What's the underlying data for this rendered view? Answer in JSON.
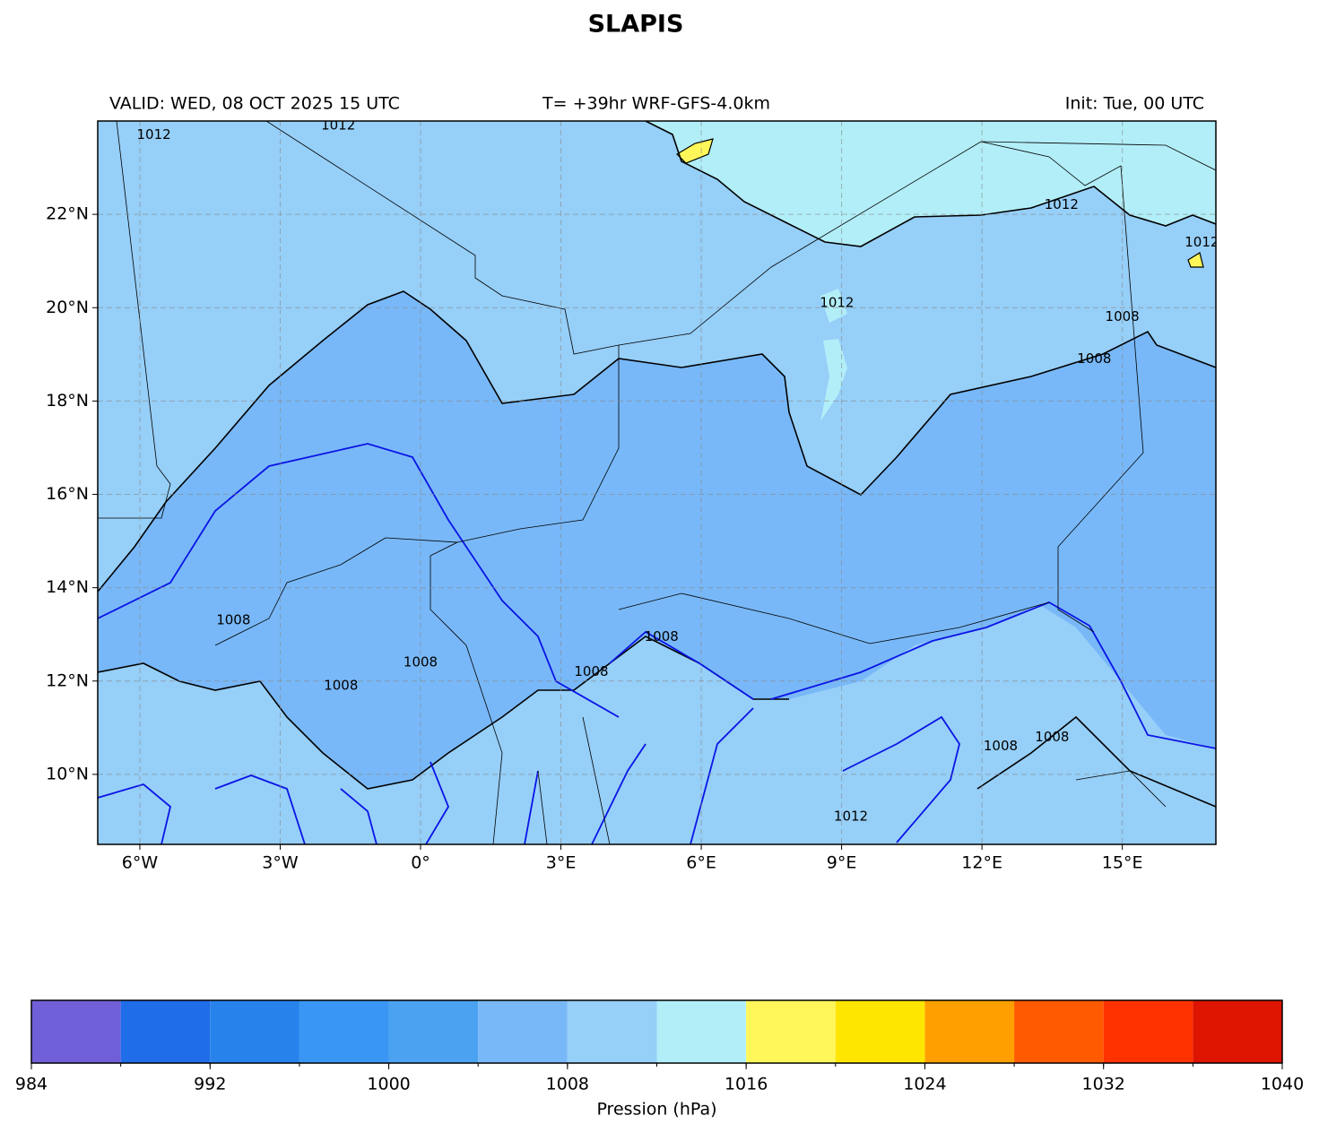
{
  "title": "SLAPIS",
  "valid": "VALID: WED, 08 OCT 2025 15 UTC",
  "run": "T= +39hr WRF-GFS-4.0km",
  "init": "Init: Tue, 00 UTC",
  "map": {
    "lon_range": [
      -6.9,
      17
    ],
    "lat_range": [
      8.5,
      24
    ],
    "lon_ticks": [
      {
        "value": -6,
        "label": "6°W"
      },
      {
        "value": -3,
        "label": "3°W"
      },
      {
        "value": 0,
        "label": "0°"
      },
      {
        "value": 3,
        "label": "3°E"
      },
      {
        "value": 6,
        "label": "6°E"
      },
      {
        "value": 9,
        "label": "9°E"
      },
      {
        "value": 12,
        "label": "12°E"
      },
      {
        "value": 15,
        "label": "15°E"
      }
    ],
    "lat_ticks": [
      {
        "value": 10,
        "label": "10°N"
      },
      {
        "value": 12,
        "label": "12°N"
      },
      {
        "value": 14,
        "label": "14°N"
      },
      {
        "value": 16,
        "label": "16°N"
      },
      {
        "value": 18,
        "label": "18°N"
      },
      {
        "value": 20,
        "label": "20°N"
      },
      {
        "value": 22,
        "label": "22°N"
      }
    ],
    "grid": true,
    "contour_labels": [
      {
        "text": "1012",
        "lon": -5.7,
        "lat": 23.7
      },
      {
        "text": "1012",
        "lon": -1.76,
        "lat": 23.9
      },
      {
        "text": "1012",
        "lon": 13.7,
        "lat": 22.2
      },
      {
        "text": "1012",
        "lon": 16.7,
        "lat": 21.4
      },
      {
        "text": "1012",
        "lon": 8.9,
        "lat": 20.1
      },
      {
        "text": "1012",
        "lon": 9.2,
        "lat": 9.1
      },
      {
        "text": "1008",
        "lon": 14.4,
        "lat": 18.9
      },
      {
        "text": "1008",
        "lon": 15.0,
        "lat": 19.8
      },
      {
        "text": "1008",
        "lon": -4.0,
        "lat": 13.3
      },
      {
        "text": "1008",
        "lon": 0.0,
        "lat": 12.4
      },
      {
        "text": "1008",
        "lon": -1.7,
        "lat": 11.9
      },
      {
        "text": "1008",
        "lon": 5.15,
        "lat": 12.95
      },
      {
        "text": "1008",
        "lon": 3.65,
        "lat": 12.2
      },
      {
        "text": "1008",
        "lon": 12.4,
        "lat": 10.6
      },
      {
        "text": "1008",
        "lon": 13.5,
        "lat": 10.8
      }
    ]
  },
  "colorbar": {
    "label": "Pression (hPa)",
    "levels": [
      984,
      988,
      992,
      996,
      1000,
      1004,
      1008,
      1012,
      1016,
      1020,
      1024,
      1028,
      1032,
      1036,
      1040
    ],
    "colors": [
      "#7060d8",
      "#1f6de8",
      "#2882ec",
      "#3a96f4",
      "#4aa2f0",
      "#78b8f8",
      "#96cff8",
      "#b2eef8",
      "#fff75a",
      "#ffe600",
      "#ffa000",
      "#ff5a00",
      "#ff3200",
      "#dc1400"
    ],
    "ticks": [
      984,
      992,
      1000,
      1008,
      1016,
      1024,
      1032,
      1040
    ]
  }
}
